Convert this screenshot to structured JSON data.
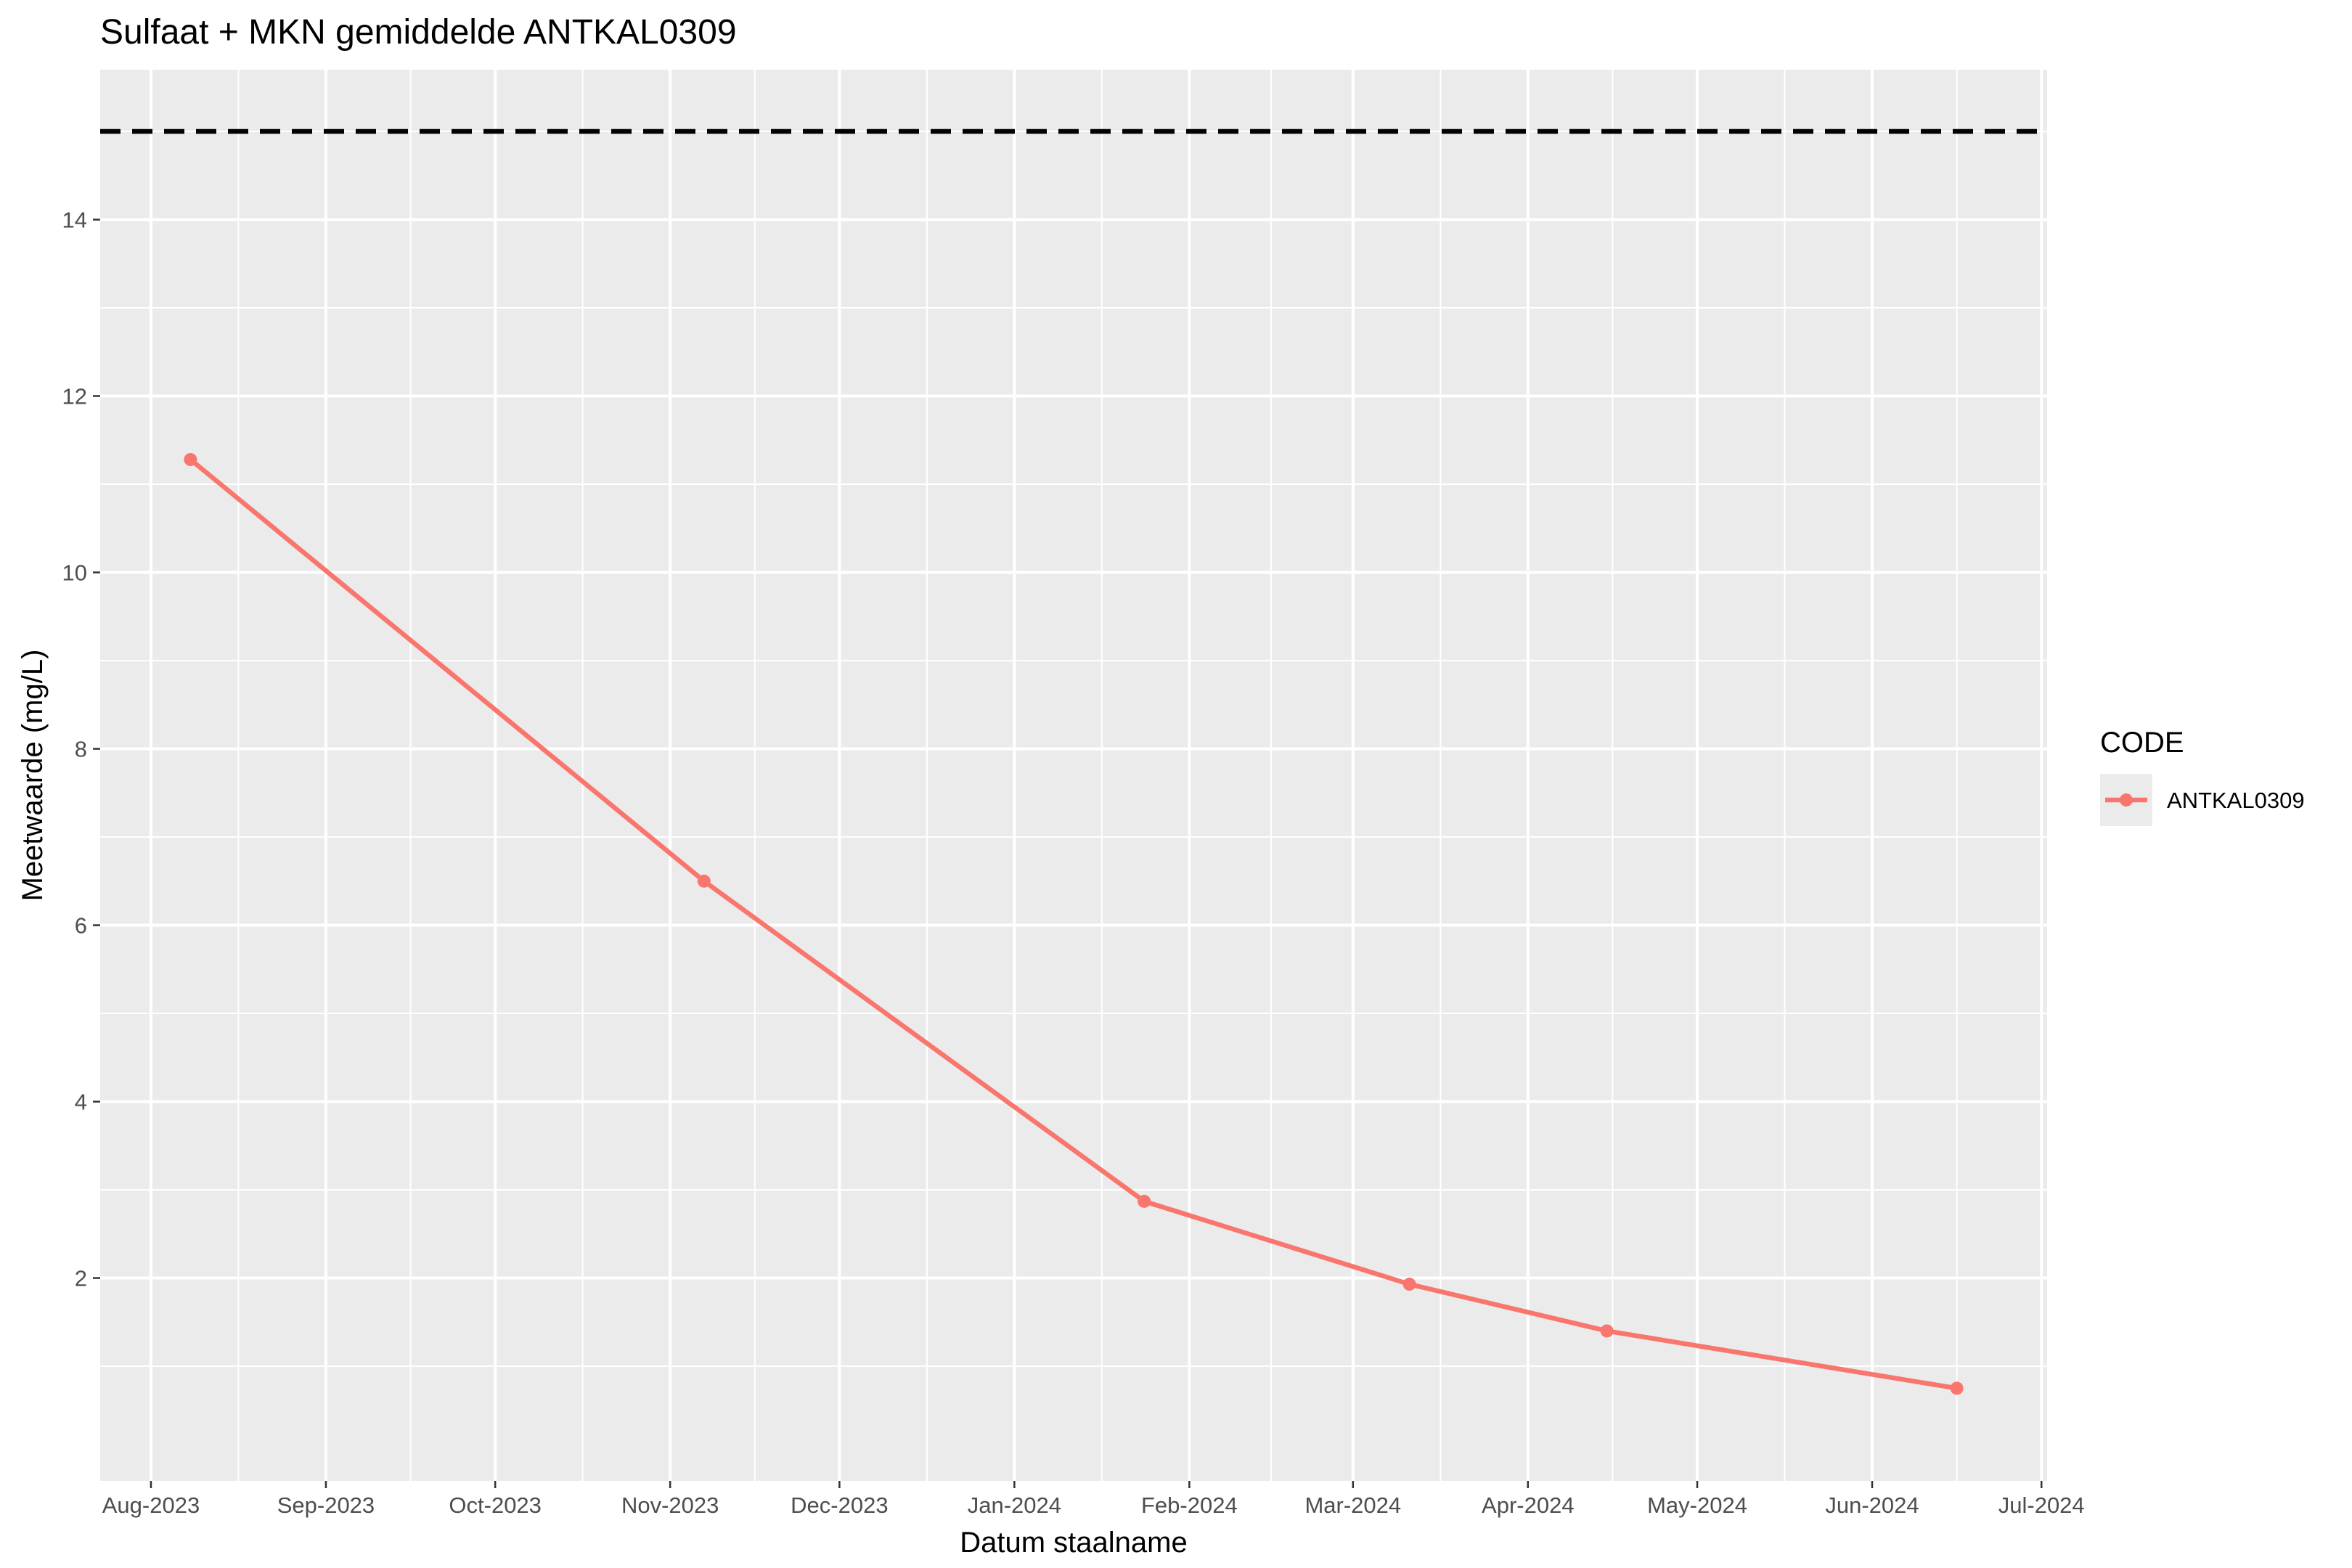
{
  "chart_data": {
    "type": "line",
    "title": "Sulfaat + MKN gemiddelde ANTKAL0309",
    "xlabel": "Datum staalname",
    "ylabel": "Meetwaarde (mg/L)",
    "x_ticks": [
      {
        "date": "2023-08-01",
        "label": "Aug-2023"
      },
      {
        "date": "2023-09-01",
        "label": "Sep-2023"
      },
      {
        "date": "2023-10-01",
        "label": "Oct-2023"
      },
      {
        "date": "2023-11-01",
        "label": "Nov-2023"
      },
      {
        "date": "2023-12-01",
        "label": "Dec-2023"
      },
      {
        "date": "2024-01-01",
        "label": "Jan-2024"
      },
      {
        "date": "2024-02-01",
        "label": "Feb-2024"
      },
      {
        "date": "2024-03-01",
        "label": "Mar-2024"
      },
      {
        "date": "2024-04-01",
        "label": "Apr-2024"
      },
      {
        "date": "2024-05-01",
        "label": "May-2024"
      },
      {
        "date": "2024-06-01",
        "label": "Jun-2024"
      },
      {
        "date": "2024-07-01",
        "label": "Jul-2024"
      }
    ],
    "y_ticks": [
      2,
      4,
      6,
      8,
      10,
      12,
      14
    ],
    "xlim": [
      "2023-07-23",
      "2024-07-02"
    ],
    "ylim": [
      -0.3,
      15.7
    ],
    "grid": true,
    "legend": {
      "title": "CODE",
      "position": "right"
    },
    "reference_line": {
      "value": 15,
      "style": "dashed",
      "color": "#000000"
    },
    "series": [
      {
        "name": "ANTKAL0309",
        "color": "#F8766D",
        "points": [
          {
            "x": "2023-08-08",
            "y": 11.28
          },
          {
            "x": "2023-11-07",
            "y": 6.5
          },
          {
            "x": "2024-01-24",
            "y": 2.87
          },
          {
            "x": "2024-03-11",
            "y": 1.93
          },
          {
            "x": "2024-04-15",
            "y": 1.4
          },
          {
            "x": "2024-06-16",
            "y": 0.75
          }
        ]
      }
    ]
  }
}
